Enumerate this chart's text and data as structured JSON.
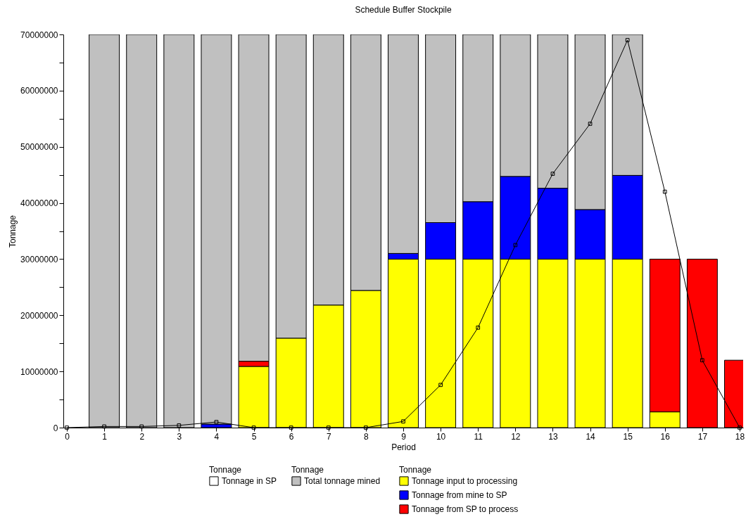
{
  "chart_data": {
    "type": "bar",
    "title": "Schedule Buffer Stockpile",
    "xlabel": "Period",
    "ylabel": "Tonnage",
    "legend_title": "Tonnage",
    "stacked": true,
    "legend": "bottom",
    "grid": false,
    "x": [
      1,
      2,
      3,
      4,
      5,
      6,
      7,
      8,
      9,
      10,
      11,
      12,
      13,
      14,
      15,
      16,
      17,
      18
    ],
    "xlim": [
      0,
      18
    ],
    "xticks": [
      0,
      1,
      2,
      3,
      4,
      5,
      6,
      7,
      8,
      9,
      10,
      11,
      12,
      13,
      14,
      15,
      16,
      17,
      18
    ],
    "ylim": [
      0,
      70000000
    ],
    "yticks": [
      0,
      {
        "value": 5000000,
        "label": null
      },
      10000000,
      {
        "value": 15000000,
        "label": null
      },
      20000000,
      {
        "value": 25000000,
        "label": null
      },
      30000000,
      {
        "value": 35000000,
        "label": null
      },
      40000000,
      {
        "value": 45000000,
        "label": null
      },
      50000000,
      {
        "value": 55000000,
        "label": null
      },
      60000000,
      {
        "value": 65000000,
        "label": null
      },
      70000000
    ],
    "series": [
      {
        "name": "Tonnage in SP",
        "type": "line",
        "marker": "square",
        "color": "#000000",
        "x": [
          0,
          1,
          2,
          3,
          4,
          5,
          6,
          7,
          8,
          9,
          10,
          11,
          12,
          13,
          14,
          15,
          16,
          17,
          18
        ],
        "values": [
          0,
          200000,
          200000,
          400000,
          1000000,
          0,
          0,
          0,
          0,
          1100000,
          7600000,
          17800000,
          32500000,
          45200000,
          54100000,
          69000000,
          42000000,
          12000000,
          0
        ]
      },
      {
        "name": "Tonnage input to processing",
        "color": "#ffff00",
        "values": [
          null,
          null,
          null,
          null,
          10900000,
          15900000,
          21800000,
          24400000,
          30000000,
          30000000,
          30000000,
          30000000,
          30000000,
          30000000,
          30000000,
          2800000,
          null,
          null
        ]
      },
      {
        "name": "Tonnage from mine to SP",
        "color": "#0000ff",
        "values": [
          null,
          null,
          null,
          600000,
          null,
          null,
          null,
          null,
          1000000,
          6500000,
          10200000,
          14700000,
          12600000,
          8800000,
          14900000,
          null,
          null,
          null
        ]
      },
      {
        "name": "Tonnage from SP to process",
        "color": "#ff0000",
        "values": [
          null,
          null,
          null,
          null,
          900000,
          null,
          null,
          null,
          null,
          null,
          null,
          null,
          null,
          null,
          null,
          27200000,
          30000000,
          12000000
        ]
      },
      {
        "name": "Total tonnage mined",
        "color": "#c0c0c0",
        "values": [
          70000000,
          70000000,
          70000000,
          69400000,
          58200000,
          54100000,
          48200000,
          45600000,
          39000000,
          33500000,
          29800000,
          25300000,
          27400000,
          31200000,
          25100000,
          null,
          null,
          null
        ]
      }
    ]
  }
}
